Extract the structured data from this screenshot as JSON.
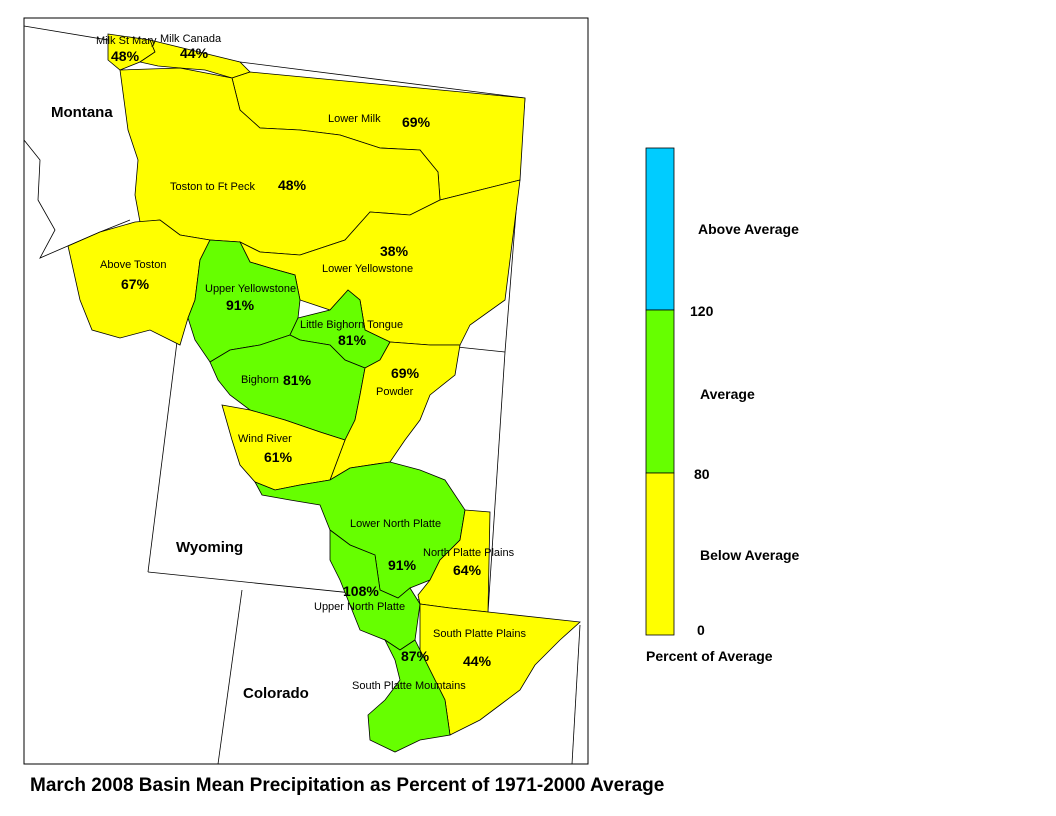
{
  "title": "March 2008 Basin Mean Precipitation as Percent of 1971-2000 Average",
  "colors": {
    "below": "#ffff00",
    "average": "#66ff00",
    "above": "#00ccff"
  },
  "states": {
    "montana": "Montana",
    "wyoming": "Wyoming",
    "colorado": "Colorado"
  },
  "basins": {
    "milk_st_mary": {
      "name": "Milk St Mary",
      "pct": "48%"
    },
    "milk_canada": {
      "name": "Milk Canada",
      "pct": "44%"
    },
    "lower_milk": {
      "name": "Lower Milk",
      "pct": "69%"
    },
    "toston_ft_peck": {
      "name": "Toston to Ft Peck",
      "pct": "48%"
    },
    "above_toston": {
      "name": "Above Toston",
      "pct": "67%"
    },
    "lower_yellowstone": {
      "name": "Lower Yellowstone",
      "pct": "38%"
    },
    "upper_yellowstone": {
      "name": "Upper Yellowstone",
      "pct": "91%"
    },
    "little_bighorn_tongue": {
      "name": "Little Bighorn Tongue",
      "pct": "81%"
    },
    "bighorn": {
      "name": "Bighorn",
      "pct": "81%"
    },
    "powder": {
      "name": "Powder",
      "pct": "69%"
    },
    "wind_river": {
      "name": "Wind River",
      "pct": "61%"
    },
    "lower_north_platte": {
      "name": "Lower North Platte",
      "pct": "91%"
    },
    "north_platte_plains": {
      "name": "North Platte Plains",
      "pct": "64%"
    },
    "upper_north_platte": {
      "name": "Upper North Platte",
      "pct": "108%"
    },
    "south_platte_plains": {
      "name": "South Platte Plains",
      "pct": "44%"
    },
    "south_platte_mountains": {
      "name": "South Platte Mountains",
      "pct": "87%"
    }
  },
  "legend": {
    "above_label": "Above Average",
    "average_label": "Average",
    "below_label": "Below Average",
    "tick_120": "120",
    "tick_80": "80",
    "tick_0": "0",
    "caption": "Percent of Average"
  }
}
